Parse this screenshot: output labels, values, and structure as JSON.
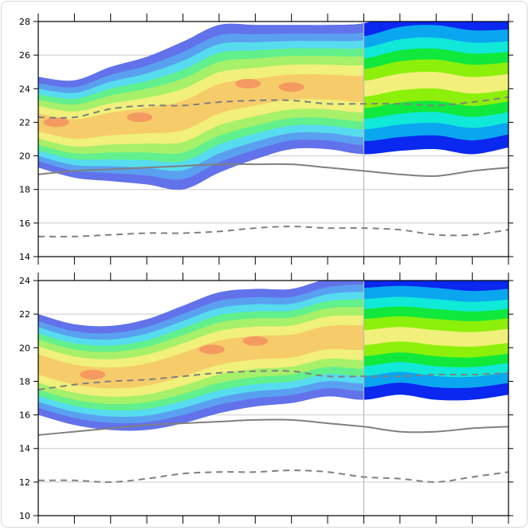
{
  "chart_data": [
    {
      "type": "contour",
      "title": "",
      "xlabel": "",
      "ylabel": "",
      "ylim": [
        14,
        28
      ],
      "yticks": [
        14,
        16,
        18,
        20,
        22,
        24,
        26,
        28
      ],
      "x_ticks_count": 14,
      "grid": true,
      "vertical_divider_x": 9,
      "colors": {
        "level_1": "#6272ea",
        "level_2": "#5aa0f0",
        "level_3": "#56dcee",
        "level_4": "#62f08c",
        "level_5": "#a6f06a",
        "level_6": "#f0f07a",
        "level_7": "#f6cc6a",
        "level_8": "#f49a60",
        "right_level_1": "#0a28f0",
        "right_level_2": "#0aa6f0",
        "right_level_3": "#10e8d8",
        "right_level_4": "#10e83c",
        "right_level_5": "#8cf00a"
      },
      "x": [
        0,
        1,
        2,
        3,
        4,
        5,
        6,
        7,
        8,
        9,
        10,
        11,
        12,
        13
      ],
      "band_center": [
        22.0,
        21.6,
        21.9,
        22.1,
        22.4,
        23.4,
        23.8,
        24.1,
        24.1,
        24.0,
        24.4,
        24.5,
        24.2,
        24.4
      ],
      "band_half_width": [
        2.7,
        2.9,
        3.4,
        3.8,
        4.4,
        4.4,
        4.0,
        3.7,
        3.7,
        3.9,
        4.1,
        4.1,
        4.1,
        3.9
      ],
      "series": [
        {
          "style": "dashed",
          "values": [
            22.3,
            22.3,
            22.8,
            23.0,
            23.0,
            23.2,
            23.3,
            23.3,
            23.1,
            23.1,
            23.1,
            23.0,
            23.2,
            23.5
          ]
        },
        {
          "style": "solid",
          "values": [
            18.9,
            19.1,
            19.2,
            19.3,
            19.4,
            19.5,
            19.5,
            19.5,
            19.3,
            19.1,
            18.9,
            18.8,
            19.1,
            19.3
          ]
        },
        {
          "style": "dashed",
          "values": [
            15.2,
            15.2,
            15.3,
            15.4,
            15.4,
            15.5,
            15.7,
            15.8,
            15.7,
            15.7,
            15.6,
            15.3,
            15.3,
            15.6
          ]
        }
      ]
    },
    {
      "type": "contour",
      "title": "",
      "xlabel": "",
      "ylabel": "",
      "ylim": [
        10,
        24
      ],
      "yticks": [
        10,
        12,
        14,
        16,
        18,
        20,
        22,
        24
      ],
      "x_ticks_count": 14,
      "grid": true,
      "vertical_divider_x": 9,
      "colors": {
        "level_1": "#6272ea",
        "level_2": "#5aa0f0",
        "level_3": "#56dcee",
        "level_4": "#62f08c",
        "level_5": "#a6f06a",
        "level_6": "#f0f07a",
        "level_7": "#f6cc6a",
        "level_8": "#f49a60",
        "right_level_1": "#0a28f0",
        "right_level_2": "#0aa6f0",
        "right_level_3": "#10e8d8",
        "right_level_4": "#10e83c",
        "right_level_5": "#8cf00a"
      },
      "x": [
        0,
        1,
        2,
        3,
        4,
        5,
        6,
        7,
        8,
        9,
        10,
        11,
        12,
        13
      ],
      "band_center": [
        19.0,
        18.4,
        18.2,
        18.4,
        19.0,
        19.7,
        20.0,
        20.1,
        20.6,
        20.6,
        20.8,
        20.6,
        20.5,
        20.7
      ],
      "band_half_width": [
        3.0,
        3.0,
        3.1,
        3.3,
        3.5,
        3.6,
        3.5,
        3.4,
        3.5,
        3.7,
        3.6,
        3.7,
        3.6,
        3.5
      ],
      "series": [
        {
          "style": "dashed",
          "values": [
            17.5,
            17.8,
            18.0,
            18.1,
            18.3,
            18.5,
            18.6,
            18.6,
            18.3,
            18.3,
            18.3,
            18.4,
            18.4,
            18.5
          ]
        },
        {
          "style": "solid",
          "values": [
            14.8,
            15.0,
            15.2,
            15.4,
            15.5,
            15.6,
            15.7,
            15.7,
            15.5,
            15.3,
            15.0,
            15.0,
            15.2,
            15.3
          ]
        },
        {
          "style": "dashed",
          "values": [
            12.1,
            12.1,
            12.0,
            12.2,
            12.5,
            12.6,
            12.6,
            12.7,
            12.6,
            12.3,
            12.2,
            12.0,
            12.3,
            12.6
          ]
        }
      ]
    }
  ]
}
